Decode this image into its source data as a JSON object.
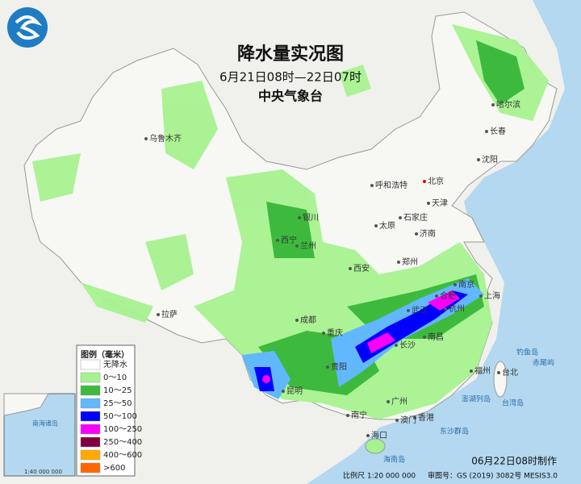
{
  "header": {
    "title": "降水量实况图",
    "period": "6月21日08时—22日07时",
    "agency": "中央气象台"
  },
  "legend": {
    "title": "图例（毫米）",
    "items": [
      {
        "label": "无降水",
        "color": "#ffffff"
      },
      {
        "label": "0～10",
        "color": "#a6f28f"
      },
      {
        "label": "10～25",
        "color": "#3dba3d"
      },
      {
        "label": "25～50",
        "color": "#61b8ff"
      },
      {
        "label": "50～100",
        "color": "#0000fe"
      },
      {
        "label": "100～250",
        "color": "#fa00fa"
      },
      {
        "label": "250～400",
        "color": "#800040"
      },
      {
        "label": "400～600",
        "color": "#ffaa00"
      },
      {
        "label": ">600",
        "color": "#ff6600"
      }
    ]
  },
  "cities": [
    "北京",
    "天津",
    "石家庄",
    "太原",
    "呼和浩特",
    "济南",
    "郑州",
    "西安",
    "银川",
    "兰州",
    "西宁",
    "乌鲁木齐",
    "拉萨",
    "成都",
    "重庆",
    "贵阳",
    "昆明",
    "南宁",
    "广州",
    "长沙",
    "武汉",
    "南昌",
    "合肥",
    "南京",
    "杭州",
    "上海",
    "福州",
    "台北",
    "海口",
    "香港",
    "澳门",
    "沈阳",
    "长春",
    "哈尔滨"
  ],
  "islands": [
    "钓鱼岛",
    "赤尾屿",
    "台湾岛",
    "澎湖列岛",
    "东沙群岛",
    "海南岛"
  ],
  "inset": {
    "label": "南海诸岛",
    "scale": "1:40 000 000"
  },
  "footer": {
    "made": "06月22日08时制作",
    "scale": "比例尺 1:20 000 000",
    "approval": "审图号：GS (2019) 3082号 MESIS3.0"
  }
}
